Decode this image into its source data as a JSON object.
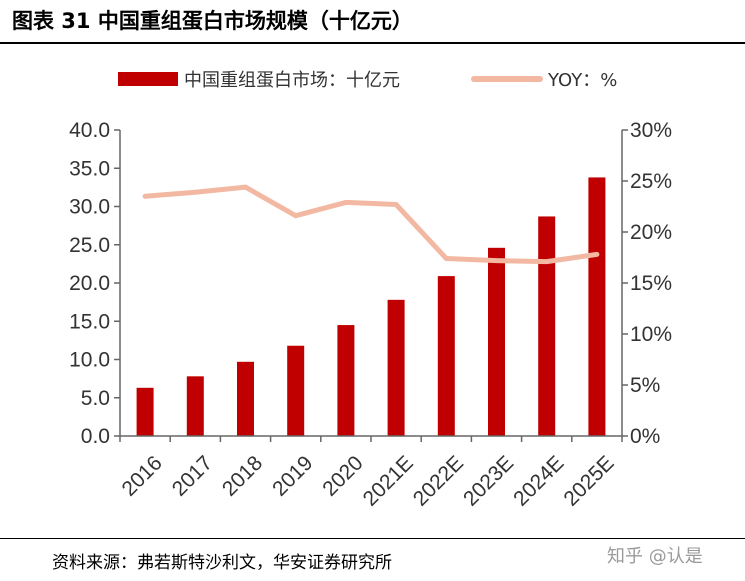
{
  "figure": {
    "title": "图表 31  中国重组蛋白市场规模（十亿元）",
    "source": "资料来源：弗若斯特沙利文，华安证券研究所",
    "watermark": "知乎 @认是"
  },
  "colors": {
    "bar": "#c00000",
    "line": "#f2b8a2",
    "axis": "#666666",
    "text": "#333333"
  },
  "chart_data": {
    "type": "bar",
    "categories": [
      "2016",
      "2017",
      "2018",
      "2019",
      "2020",
      "2021E",
      "2022E",
      "2023E",
      "2024E",
      "2025E"
    ],
    "series": [
      {
        "name": "中国重组蛋白市场：十亿元",
        "type": "bar",
        "axis": "left",
        "values": [
          6.3,
          7.8,
          9.7,
          11.8,
          14.5,
          17.8,
          20.9,
          24.6,
          28.7,
          33.8
        ]
      },
      {
        "name": "YOY：%",
        "type": "line",
        "axis": "right",
        "values": [
          23.5,
          23.9,
          24.4,
          21.6,
          22.9,
          22.7,
          17.4,
          17.2,
          17.1,
          17.8
        ]
      }
    ],
    "y_left": {
      "ylim": [
        0,
        40
      ],
      "ticks": [
        "0.0",
        "5.0",
        "10.0",
        "15.0",
        "20.0",
        "25.0",
        "30.0",
        "35.0",
        "40.0"
      ]
    },
    "y_right": {
      "ylim": [
        0,
        30
      ],
      "ticks": [
        "0%",
        "5%",
        "10%",
        "15%",
        "20%",
        "25%",
        "30%"
      ]
    },
    "legend_position": "top",
    "grid": false
  }
}
